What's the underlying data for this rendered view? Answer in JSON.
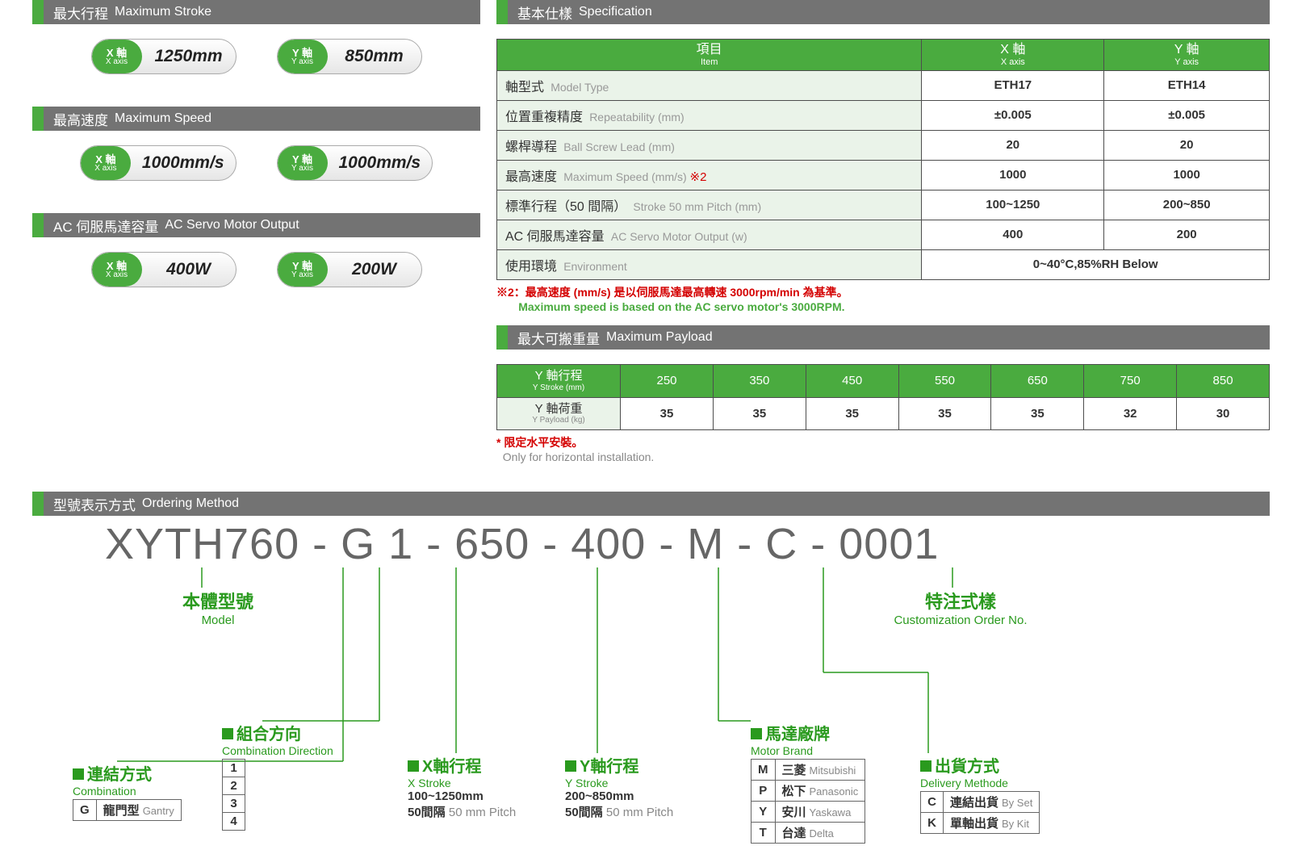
{
  "colors": {
    "green": "#4aab3f",
    "green_dark": "#2a9a1e",
    "grey_hdr": "#737373",
    "red": "#d40000",
    "muted": "#888888"
  },
  "left": {
    "sections": [
      {
        "zh": "最大行程",
        "en": "Maximum Stroke",
        "pills": [
          {
            "lbl_zh": "X 軸",
            "lbl_en": "X axis",
            "val": "1250mm"
          },
          {
            "lbl_zh": "Y 軸",
            "lbl_en": "Y axis",
            "val": "850mm"
          }
        ]
      },
      {
        "zh": "最高速度",
        "en": "Maximum Speed",
        "pills": [
          {
            "lbl_zh": "X 軸",
            "lbl_en": "X axis",
            "val": "1000mm/s"
          },
          {
            "lbl_zh": "Y 軸",
            "lbl_en": "Y axis",
            "val": "1000mm/s"
          }
        ]
      },
      {
        "zh": "AC 伺服馬達容量",
        "en": "AC Servo Motor Output",
        "pills": [
          {
            "lbl_zh": "X 軸",
            "lbl_en": "X axis",
            "val": "400W"
          },
          {
            "lbl_zh": "Y 軸",
            "lbl_en": "Y axis",
            "val": "200W"
          }
        ]
      }
    ]
  },
  "spec": {
    "hdr_zh": "基本仕樣",
    "hdr_en": "Specification",
    "col_item_zh": "項目",
    "col_item_en": "Item",
    "col_x_zh": "X 軸",
    "col_x_en": "X axis",
    "col_y_zh": "Y 軸",
    "col_y_en": "Y axis",
    "rows": [
      {
        "zh": "軸型式",
        "en": "Model Type",
        "x": "ETH17",
        "y": "ETH14"
      },
      {
        "zh": "位置重複精度",
        "en": "Repeatability (mm)",
        "x": "±0.005",
        "y": "±0.005"
      },
      {
        "zh": "螺桿導程",
        "en": "Ball Screw Lead (mm)",
        "x": "20",
        "y": "20"
      },
      {
        "zh": "最高速度",
        "en": "Maximum Speed (mm/s) ",
        "note": "※2",
        "x": "1000",
        "y": "1000"
      },
      {
        "zh": "標準行程（50 間隔）",
        "en": "Stroke 50 mm Pitch (mm)",
        "x": "100~1250",
        "y": "200~850"
      },
      {
        "zh": "AC 伺服馬達容量",
        "en": "AC Servo Motor Output (w)",
        "x": "400",
        "y": "200"
      },
      {
        "zh": "使用環境",
        "en": "Environment",
        "merged": "0~40°C,85%RH Below"
      }
    ],
    "footnote_prefix": "※2：",
    "footnote_zh": "最高速度 (mm/s) 是以伺服馬達最高轉速 3000rpm/min 為基準。",
    "footnote_en": "Maximum speed is based on the AC servo motor's 3000RPM."
  },
  "payload": {
    "hdr_zh": "最大可搬重量",
    "hdr_en": "Maximum Payload",
    "row1_zh": "Y 軸行程",
    "row1_en": "Y Stroke (mm)",
    "row2_zh": "Y 軸荷重",
    "row2_en": "Y Payload (kg)",
    "cols": [
      "250",
      "350",
      "450",
      "550",
      "650",
      "750",
      "850"
    ],
    "vals": [
      "35",
      "35",
      "35",
      "35",
      "35",
      "32",
      "30"
    ],
    "footnote_star": "* 限定水平安裝。",
    "footnote_en": "Only for horizontal installation."
  },
  "order": {
    "hdr_zh": "型號表示方式",
    "hdr_en": "Ordering Method",
    "code": "XYTH760 - G 1 - 650 - 400 - M - C - 0001",
    "model": {
      "zh": "本體型號",
      "en": "Model"
    },
    "custom": {
      "zh": "特注式樣",
      "en": "Customization Order No."
    },
    "combination": {
      "zh": "連結方式",
      "en": "Combination",
      "opts": [
        {
          "k": "G",
          "zh": "龍門型",
          "en": "Gantry"
        }
      ]
    },
    "direction": {
      "zh": "組合方向",
      "en": "Combination Direction",
      "opts": [
        {
          "k": "1"
        },
        {
          "k": "2"
        },
        {
          "k": "3"
        },
        {
          "k": "4"
        }
      ]
    },
    "xstroke": {
      "zh": "X軸行程",
      "en": "X Stroke",
      "range": "100~1250mm",
      "pitch_zh": "50間隔",
      "pitch_en": "50 mm Pitch"
    },
    "ystroke": {
      "zh": "Y軸行程",
      "en": "Y Stroke",
      "range": "200~850mm",
      "pitch_zh": "50間隔",
      "pitch_en": "50 mm Pitch"
    },
    "motor": {
      "zh": "馬達廠牌",
      "en": "Motor Brand",
      "opts": [
        {
          "k": "M",
          "zh": "三菱",
          "en": "Mitsubishi"
        },
        {
          "k": "P",
          "zh": "松下",
          "en": "Panasonic"
        },
        {
          "k": "Y",
          "zh": "安川",
          "en": "Yaskawa"
        },
        {
          "k": "T",
          "zh": "台達",
          "en": "Delta"
        }
      ]
    },
    "delivery": {
      "zh": "出貨方式",
      "en": "Delivery Methode",
      "opts": [
        {
          "k": "C",
          "zh": "連結出貨",
          "en": "By Set"
        },
        {
          "k": "K",
          "zh": "單軸出貨",
          "en": "By Kit"
        }
      ]
    }
  }
}
